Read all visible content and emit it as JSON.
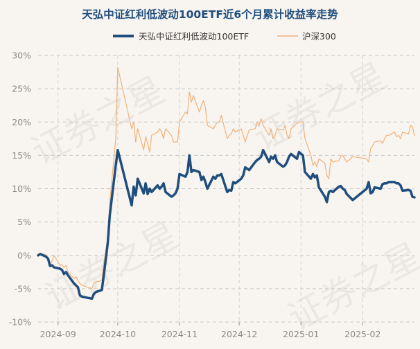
{
  "chart_data": {
    "type": "line",
    "title": "天弘中证红利低波动100ETF近6个月累计收益率走势",
    "xlabel": "",
    "ylabel": "",
    "ylim": [
      -0.1,
      0.3
    ],
    "yticks": [
      {
        "value": 0.3,
        "label": "30%"
      },
      {
        "value": 0.25,
        "label": "25%"
      },
      {
        "value": 0.2,
        "label": "20%"
      },
      {
        "value": 0.15,
        "label": "15%"
      },
      {
        "value": 0.1,
        "label": "10%"
      },
      {
        "value": 0.05,
        "label": "5%"
      },
      {
        "value": 0.0,
        "label": "0%"
      },
      {
        "value": -0.05,
        "label": "-5%"
      },
      {
        "value": -0.1,
        "label": "-10%"
      }
    ],
    "xticks": [
      {
        "date": "2024-09-01",
        "label": "2024-09"
      },
      {
        "date": "2024-10-01",
        "label": "2024-10"
      },
      {
        "date": "2024-11-01",
        "label": "2024-11"
      },
      {
        "date": "2024-12-01",
        "label": "2024-12"
      },
      {
        "date": "2025-01-01",
        "label": "2025-01"
      },
      {
        "date": "2025-02-01",
        "label": "2025-02"
      }
    ],
    "xrange": [
      "2024-08-22",
      "2025-02-27"
    ],
    "grid": true,
    "legend_position": "top-center",
    "watermark": "证券之星",
    "series": [
      {
        "name": "天弘中证红利低波动100ETF",
        "color": "#1f4e7e",
        "points": [
          [
            "2024-08-22",
            0.0
          ],
          [
            "2024-08-23",
            0.002
          ],
          [
            "2024-08-26",
            -0.002
          ],
          [
            "2024-08-27",
            -0.005
          ],
          [
            "2024-08-28",
            -0.016
          ],
          [
            "2024-08-29",
            -0.015
          ],
          [
            "2024-08-30",
            -0.018
          ],
          [
            "2024-09-02",
            -0.02
          ],
          [
            "2024-09-03",
            -0.022
          ],
          [
            "2024-09-04",
            -0.028
          ],
          [
            "2024-09-05",
            -0.025
          ],
          [
            "2024-09-06",
            -0.03
          ],
          [
            "2024-09-09",
            -0.042
          ],
          [
            "2024-09-10",
            -0.045
          ],
          [
            "2024-09-11",
            -0.048
          ],
          [
            "2024-09-12",
            -0.06
          ],
          [
            "2024-09-13",
            -0.062
          ],
          [
            "2024-09-18",
            -0.065
          ],
          [
            "2024-09-19",
            -0.058
          ],
          [
            "2024-09-20",
            -0.055
          ],
          [
            "2024-09-23",
            -0.052
          ],
          [
            "2024-09-24",
            -0.03
          ],
          [
            "2024-09-25",
            -0.005
          ],
          [
            "2024-09-26",
            0.02
          ],
          [
            "2024-09-27",
            0.06
          ],
          [
            "2024-09-30",
            0.135
          ],
          [
            "2024-10-01",
            0.158
          ],
          [
            "2024-10-08",
            0.075
          ],
          [
            "2024-10-09",
            0.103
          ],
          [
            "2024-10-10",
            0.09
          ],
          [
            "2024-10-11",
            0.115
          ],
          [
            "2024-10-14",
            0.093
          ],
          [
            "2024-10-15",
            0.108
          ],
          [
            "2024-10-16",
            0.092
          ],
          [
            "2024-10-17",
            0.1
          ],
          [
            "2024-10-18",
            0.095
          ],
          [
            "2024-10-21",
            0.105
          ],
          [
            "2024-10-22",
            0.1
          ],
          [
            "2024-10-23",
            0.103
          ],
          [
            "2024-10-24",
            0.108
          ],
          [
            "2024-10-25",
            0.095
          ],
          [
            "2024-10-28",
            0.088
          ],
          [
            "2024-10-29",
            0.09
          ],
          [
            "2024-10-30",
            0.093
          ],
          [
            "2024-10-31",
            0.1
          ],
          [
            "2024-11-01",
            0.122
          ],
          [
            "2024-11-04",
            0.118
          ],
          [
            "2024-11-05",
            0.125
          ],
          [
            "2024-11-06",
            0.15
          ],
          [
            "2024-11-07",
            0.125
          ],
          [
            "2024-11-08",
            0.128
          ],
          [
            "2024-11-11",
            0.125
          ],
          [
            "2024-11-12",
            0.113
          ],
          [
            "2024-11-13",
            0.118
          ],
          [
            "2024-11-14",
            0.11
          ],
          [
            "2024-11-15",
            0.1
          ],
          [
            "2024-11-18",
            0.118
          ],
          [
            "2024-11-19",
            0.115
          ],
          [
            "2024-11-20",
            0.12
          ],
          [
            "2024-11-21",
            0.12
          ],
          [
            "2024-11-22",
            0.122
          ],
          [
            "2024-11-25",
            0.095
          ],
          [
            "2024-11-26",
            0.098
          ],
          [
            "2024-11-27",
            0.097
          ],
          [
            "2024-11-28",
            0.11
          ],
          [
            "2024-11-29",
            0.108
          ],
          [
            "2024-12-02",
            0.115
          ],
          [
            "2024-12-03",
            0.12
          ],
          [
            "2024-12-04",
            0.132
          ],
          [
            "2024-12-05",
            0.13
          ],
          [
            "2024-12-06",
            0.128
          ],
          [
            "2024-12-09",
            0.14
          ],
          [
            "2024-12-10",
            0.143
          ],
          [
            "2024-12-11",
            0.145
          ],
          [
            "2024-12-12",
            0.148
          ],
          [
            "2024-12-13",
            0.158
          ],
          [
            "2024-12-16",
            0.14
          ],
          [
            "2024-12-17",
            0.148
          ],
          [
            "2024-12-18",
            0.145
          ],
          [
            "2024-12-19",
            0.15
          ],
          [
            "2024-12-20",
            0.14
          ],
          [
            "2024-12-23",
            0.133
          ],
          [
            "2024-12-24",
            0.135
          ],
          [
            "2024-12-25",
            0.14
          ],
          [
            "2024-12-26",
            0.148
          ],
          [
            "2024-12-27",
            0.152
          ],
          [
            "2024-12-30",
            0.145
          ],
          [
            "2024-12-31",
            0.155
          ],
          [
            "2025-01-02",
            0.15
          ],
          [
            "2025-01-03",
            0.125
          ],
          [
            "2025-01-06",
            0.115
          ],
          [
            "2025-01-07",
            0.122
          ],
          [
            "2025-01-08",
            0.117
          ],
          [
            "2025-01-09",
            0.12
          ],
          [
            "2025-01-10",
            0.102
          ],
          [
            "2025-01-13",
            0.088
          ],
          [
            "2025-01-14",
            0.08
          ],
          [
            "2025-01-15",
            0.095
          ],
          [
            "2025-01-16",
            0.097
          ],
          [
            "2025-01-17",
            0.095
          ],
          [
            "2025-01-20",
            0.103
          ],
          [
            "2025-01-21",
            0.104
          ],
          [
            "2025-01-22",
            0.1
          ],
          [
            "2025-01-23",
            0.098
          ],
          [
            "2025-01-24",
            0.092
          ],
          [
            "2025-01-27",
            0.083
          ],
          [
            "2025-02-03",
            0.1
          ],
          [
            "2025-02-04",
            0.11
          ],
          [
            "2025-02-05",
            0.093
          ],
          [
            "2025-02-06",
            0.095
          ],
          [
            "2025-02-07",
            0.102
          ],
          [
            "2025-02-10",
            0.1
          ],
          [
            "2025-02-11",
            0.107
          ],
          [
            "2025-02-12",
            0.108
          ],
          [
            "2025-02-13",
            0.108
          ],
          [
            "2025-02-14",
            0.11
          ],
          [
            "2025-02-17",
            0.11
          ],
          [
            "2025-02-18",
            0.108
          ],
          [
            "2025-02-19",
            0.108
          ],
          [
            "2025-02-20",
            0.105
          ],
          [
            "2025-02-21",
            0.097
          ],
          [
            "2025-02-24",
            0.098
          ],
          [
            "2025-02-25",
            0.097
          ],
          [
            "2025-02-26",
            0.088
          ],
          [
            "2025-02-27",
            0.087
          ]
        ]
      },
      {
        "name": "沪深300",
        "color": "#f0b27a",
        "points": [
          [
            "2024-08-22",
            0.0
          ],
          [
            "2024-08-23",
            0.003
          ],
          [
            "2024-08-26",
            0.001
          ],
          [
            "2024-08-27",
            -0.008
          ],
          [
            "2024-08-28",
            -0.015
          ],
          [
            "2024-08-29",
            -0.008
          ],
          [
            "2024-08-30",
            0.0
          ],
          [
            "2024-09-02",
            -0.015
          ],
          [
            "2024-09-03",
            -0.014
          ],
          [
            "2024-09-04",
            -0.018
          ],
          [
            "2024-09-05",
            -0.015
          ],
          [
            "2024-09-06",
            -0.025
          ],
          [
            "2024-09-09",
            -0.035
          ],
          [
            "2024-09-10",
            -0.032
          ],
          [
            "2024-09-11",
            -0.038
          ],
          [
            "2024-09-12",
            -0.042
          ],
          [
            "2024-09-13",
            -0.045
          ],
          [
            "2024-09-18",
            -0.05
          ],
          [
            "2024-09-19",
            -0.042
          ],
          [
            "2024-09-20",
            -0.04
          ],
          [
            "2024-09-23",
            -0.038
          ],
          [
            "2024-09-24",
            -0.01
          ],
          [
            "2024-09-25",
            0.005
          ],
          [
            "2024-09-26",
            0.03
          ],
          [
            "2024-09-27",
            0.08
          ],
          [
            "2024-09-30",
            0.175
          ],
          [
            "2024-10-01",
            0.282
          ],
          [
            "2024-10-08",
            0.19
          ],
          [
            "2024-10-09",
            0.2
          ],
          [
            "2024-10-10",
            0.17
          ],
          [
            "2024-10-11",
            0.19
          ],
          [
            "2024-10-14",
            0.158
          ],
          [
            "2024-10-15",
            0.178
          ],
          [
            "2024-10-16",
            0.168
          ],
          [
            "2024-10-17",
            0.155
          ],
          [
            "2024-10-18",
            0.18
          ],
          [
            "2024-10-21",
            0.185
          ],
          [
            "2024-10-22",
            0.19
          ],
          [
            "2024-10-23",
            0.185
          ],
          [
            "2024-10-24",
            0.175
          ],
          [
            "2024-10-25",
            0.19
          ],
          [
            "2024-10-28",
            0.18
          ],
          [
            "2024-10-29",
            0.17
          ],
          [
            "2024-10-30",
            0.17
          ],
          [
            "2024-10-31",
            0.17
          ],
          [
            "2024-11-01",
            0.2
          ],
          [
            "2024-11-04",
            0.215
          ],
          [
            "2024-11-05",
            0.212
          ],
          [
            "2024-11-06",
            0.245
          ],
          [
            "2024-11-07",
            0.23
          ],
          [
            "2024-11-08",
            0.24
          ],
          [
            "2024-11-11",
            0.215
          ],
          [
            "2024-11-12",
            0.225
          ],
          [
            "2024-11-13",
            0.232
          ],
          [
            "2024-11-14",
            0.222
          ],
          [
            "2024-11-15",
            0.195
          ],
          [
            "2024-11-18",
            0.19
          ],
          [
            "2024-11-19",
            0.195
          ],
          [
            "2024-11-20",
            0.2
          ],
          [
            "2024-11-21",
            0.2
          ],
          [
            "2024-11-22",
            0.21
          ],
          [
            "2024-11-25",
            0.175
          ],
          [
            "2024-11-26",
            0.18
          ],
          [
            "2024-11-27",
            0.182
          ],
          [
            "2024-11-28",
            0.19
          ],
          [
            "2024-11-29",
            0.185
          ],
          [
            "2024-12-02",
            0.19
          ],
          [
            "2024-12-03",
            0.18
          ],
          [
            "2024-12-04",
            0.17
          ],
          [
            "2024-12-05",
            0.18
          ],
          [
            "2024-12-06",
            0.188
          ],
          [
            "2024-12-09",
            0.19
          ],
          [
            "2024-12-10",
            0.2
          ],
          [
            "2024-12-11",
            0.195
          ],
          [
            "2024-12-12",
            0.205
          ],
          [
            "2024-12-13",
            0.195
          ],
          [
            "2024-12-16",
            0.18
          ],
          [
            "2024-12-17",
            0.19
          ],
          [
            "2024-12-18",
            0.175
          ],
          [
            "2024-12-19",
            0.18
          ],
          [
            "2024-12-20",
            0.19
          ],
          [
            "2024-12-23",
            0.188
          ],
          [
            "2024-12-24",
            0.195
          ],
          [
            "2024-12-25",
            0.18
          ],
          [
            "2024-12-26",
            0.175
          ],
          [
            "2024-12-27",
            0.19
          ],
          [
            "2024-12-30",
            0.198
          ],
          [
            "2024-12-31",
            0.2
          ],
          [
            "2025-01-02",
            0.2
          ],
          [
            "2025-01-03",
            0.175
          ],
          [
            "2025-01-06",
            0.15
          ],
          [
            "2025-01-07",
            0.135
          ],
          [
            "2025-01-08",
            0.14
          ],
          [
            "2025-01-09",
            0.133
          ],
          [
            "2025-01-10",
            0.145
          ],
          [
            "2025-01-13",
            0.138
          ],
          [
            "2025-01-14",
            0.12
          ],
          [
            "2025-01-15",
            0.115
          ],
          [
            "2025-01-16",
            0.145
          ],
          [
            "2025-01-17",
            0.14
          ],
          [
            "2025-01-20",
            0.142
          ],
          [
            "2025-01-21",
            0.148
          ],
          [
            "2025-01-22",
            0.15
          ],
          [
            "2025-01-23",
            0.145
          ],
          [
            "2025-01-24",
            0.14
          ],
          [
            "2025-01-27",
            0.148
          ],
          [
            "2025-02-03",
            0.145
          ],
          [
            "2025-02-04",
            0.14
          ],
          [
            "2025-02-05",
            0.16
          ],
          [
            "2025-02-06",
            0.165
          ],
          [
            "2025-02-07",
            0.17
          ],
          [
            "2025-02-10",
            0.172
          ],
          [
            "2025-02-11",
            0.168
          ],
          [
            "2025-02-12",
            0.175
          ],
          [
            "2025-02-13",
            0.18
          ],
          [
            "2025-02-14",
            0.18
          ],
          [
            "2025-02-17",
            0.185
          ],
          [
            "2025-02-18",
            0.178
          ],
          [
            "2025-02-19",
            0.18
          ],
          [
            "2025-02-20",
            0.175
          ],
          [
            "2025-02-21",
            0.185
          ],
          [
            "2025-02-24",
            0.182
          ],
          [
            "2025-02-25",
            0.195
          ],
          [
            "2025-02-26",
            0.193
          ],
          [
            "2025-02-27",
            0.18
          ]
        ]
      }
    ]
  }
}
